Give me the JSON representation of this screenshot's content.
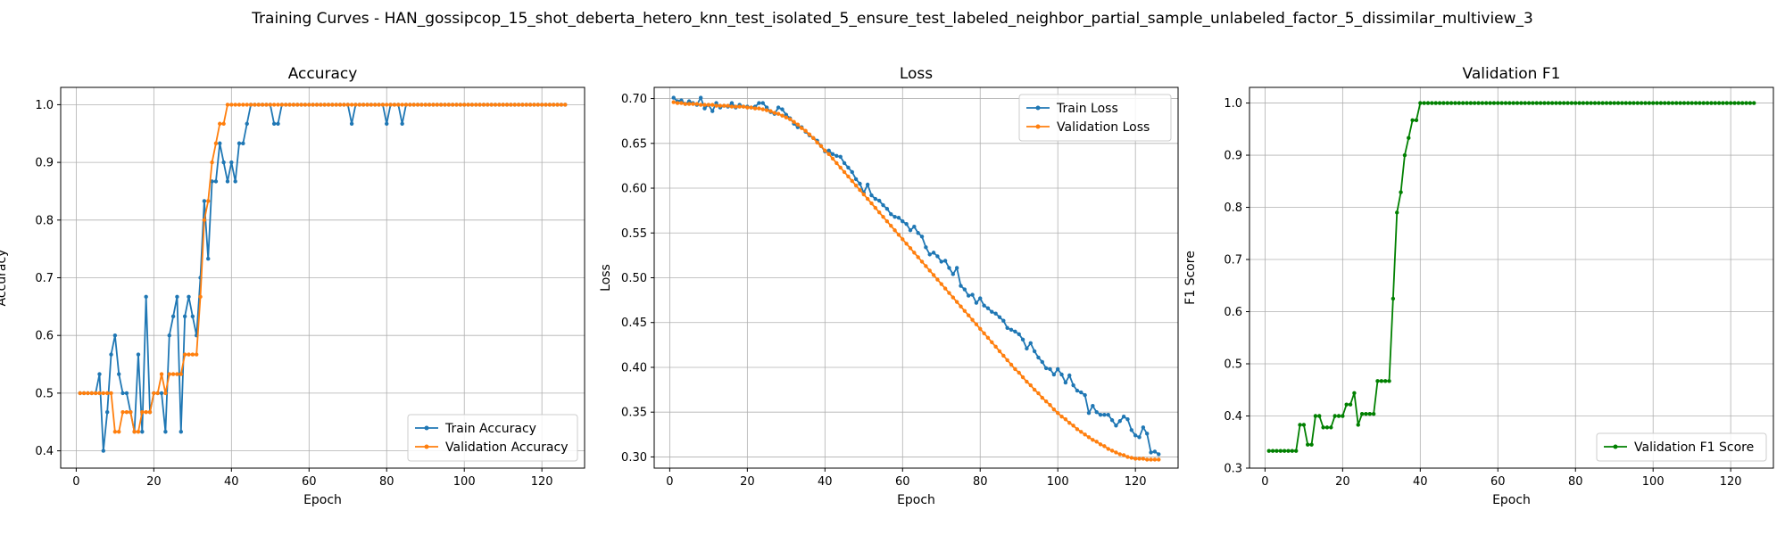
{
  "figure": {
    "suptitle": "Training Curves - HAN_gossipcop_15_shot_deberta_hetero_knn_test_isolated_5_ensure_test_labeled_neighbor_partial_sample_unlabeled_factor_5_dissimilar_multiview_3"
  },
  "chart_data": [
    {
      "type": "line",
      "title": "Accuracy",
      "xlabel": "Epoch",
      "ylabel": "Accuracy",
      "xlim": [
        -4,
        131
      ],
      "ylim": [
        0.37,
        1.03
      ],
      "xticks": [
        0,
        20,
        40,
        60,
        80,
        100,
        120
      ],
      "yticks": [
        0.4,
        0.5,
        0.6,
        0.7,
        0.8,
        0.9,
        1.0
      ],
      "grid": true,
      "legend_position": "lower-right",
      "x": [
        1,
        2,
        3,
        4,
        5,
        6,
        7,
        8,
        9,
        10,
        11,
        12,
        13,
        14,
        15,
        16,
        17,
        18,
        19,
        20,
        21,
        22,
        23,
        24,
        25,
        26,
        27,
        28,
        29,
        30,
        31,
        32,
        33,
        34,
        35,
        36,
        37,
        38,
        39,
        40,
        41,
        42,
        43,
        44,
        45,
        46,
        47,
        48,
        49,
        50,
        51,
        52,
        53,
        54,
        55,
        56,
        57,
        58,
        59,
        60,
        61,
        62,
        63,
        64,
        65,
        66,
        67,
        68,
        69,
        70,
        71,
        72,
        73,
        74,
        75,
        76,
        77,
        78,
        79,
        80,
        81,
        82,
        83,
        84,
        85,
        86,
        87,
        88,
        89,
        90,
        91,
        92,
        93,
        94,
        95,
        96,
        97,
        98,
        99,
        100,
        101,
        102,
        103,
        104,
        105,
        106,
        107,
        108,
        109,
        110,
        111,
        112,
        113,
        114,
        115,
        116,
        117,
        118,
        119,
        120,
        121,
        122,
        123,
        124,
        125,
        126
      ],
      "series": [
        {
          "name": "Train Accuracy",
          "color": "#1f77b4",
          "values": [
            0.5,
            0.5,
            0.5,
            0.5,
            0.5,
            0.533,
            0.4,
            0.467,
            0.567,
            0.6,
            0.533,
            0.5,
            0.5,
            0.467,
            0.433,
            0.567,
            0.433,
            0.667,
            0.467,
            0.5,
            0.5,
            0.5,
            0.433,
            0.6,
            0.633,
            0.667,
            0.433,
            0.633,
            0.667,
            0.633,
            0.6,
            0.7,
            0.833,
            0.733,
            0.867,
            0.867,
            0.933,
            0.9,
            0.867,
            0.9,
            0.867,
            0.933,
            0.933,
            0.967,
            1.0,
            1.0,
            1.0,
            1.0,
            1.0,
            1.0,
            0.967,
            0.967,
            1.0,
            1.0,
            1.0,
            1.0,
            1.0,
            1.0,
            1.0,
            1.0,
            1.0,
            1.0,
            1.0,
            1.0,
            1.0,
            1.0,
            1.0,
            1.0,
            1.0,
            1.0,
            0.967,
            1.0,
            1.0,
            1.0,
            1.0,
            1.0,
            1.0,
            1.0,
            1.0,
            0.967,
            1.0,
            1.0,
            1.0,
            0.967,
            1.0,
            1.0,
            1.0,
            1.0,
            1.0,
            1.0,
            1.0,
            1.0,
            1.0,
            1.0,
            1.0,
            1.0,
            1.0,
            1.0,
            1.0,
            1.0,
            1.0,
            1.0,
            1.0,
            1.0,
            1.0,
            1.0,
            1.0,
            1.0,
            1.0,
            1.0,
            1.0,
            1.0,
            1.0,
            1.0,
            1.0,
            1.0,
            1.0,
            1.0,
            1.0,
            1.0,
            1.0,
            1.0,
            1.0,
            1.0,
            1.0,
            1.0
          ]
        },
        {
          "name": "Validation Accuracy",
          "color": "#ff7f0e",
          "values": [
            0.5,
            0.5,
            0.5,
            0.5,
            0.5,
            0.5,
            0.5,
            0.5,
            0.5,
            0.433,
            0.433,
            0.467,
            0.467,
            0.467,
            0.433,
            0.433,
            0.467,
            0.467,
            0.467,
            0.5,
            0.5,
            0.533,
            0.5,
            0.533,
            0.533,
            0.533,
            0.533,
            0.567,
            0.567,
            0.567,
            0.567,
            0.667,
            0.8,
            0.833,
            0.9,
            0.933,
            0.967,
            0.967,
            1.0,
            1.0,
            1.0,
            1.0,
            1.0,
            1.0,
            1.0,
            1.0,
            1.0,
            1.0,
            1.0,
            1.0,
            1.0,
            1.0,
            1.0,
            1.0,
            1.0,
            1.0,
            1.0,
            1.0,
            1.0,
            1.0,
            1.0,
            1.0,
            1.0,
            1.0,
            1.0,
            1.0,
            1.0,
            1.0,
            1.0,
            1.0,
            1.0,
            1.0,
            1.0,
            1.0,
            1.0,
            1.0,
            1.0,
            1.0,
            1.0,
            1.0,
            1.0,
            1.0,
            1.0,
            1.0,
            1.0,
            1.0,
            1.0,
            1.0,
            1.0,
            1.0,
            1.0,
            1.0,
            1.0,
            1.0,
            1.0,
            1.0,
            1.0,
            1.0,
            1.0,
            1.0,
            1.0,
            1.0,
            1.0,
            1.0,
            1.0,
            1.0,
            1.0,
            1.0,
            1.0,
            1.0,
            1.0,
            1.0,
            1.0,
            1.0,
            1.0,
            1.0,
            1.0,
            1.0,
            1.0,
            1.0,
            1.0,
            1.0,
            1.0,
            1.0,
            1.0,
            1.0
          ]
        }
      ]
    },
    {
      "type": "line",
      "title": "Loss",
      "xlabel": "Epoch",
      "ylabel": "Loss",
      "xlim": [
        -4,
        131
      ],
      "ylim": [
        0.2875,
        0.7125
      ],
      "xticks": [
        0,
        20,
        40,
        60,
        80,
        100,
        120
      ],
      "yticks": [
        0.3,
        0.35,
        0.4,
        0.45,
        0.5,
        0.55,
        0.6,
        0.65,
        0.7
      ],
      "grid": true,
      "legend_position": "upper-right",
      "x": [
        1,
        2,
        3,
        4,
        5,
        6,
        7,
        8,
        9,
        10,
        11,
        12,
        13,
        14,
        15,
        16,
        17,
        18,
        19,
        20,
        21,
        22,
        23,
        24,
        25,
        26,
        27,
        28,
        29,
        30,
        31,
        32,
        33,
        34,
        35,
        36,
        37,
        38,
        39,
        40,
        41,
        42,
        43,
        44,
        45,
        46,
        47,
        48,
        49,
        50,
        51,
        52,
        53,
        54,
        55,
        56,
        57,
        58,
        59,
        60,
        61,
        62,
        63,
        64,
        65,
        66,
        67,
        68,
        69,
        70,
        71,
        72,
        73,
        74,
        75,
        76,
        77,
        78,
        79,
        80,
        81,
        82,
        83,
        84,
        85,
        86,
        87,
        88,
        89,
        90,
        91,
        92,
        93,
        94,
        95,
        96,
        97,
        98,
        99,
        100,
        101,
        102,
        103,
        104,
        105,
        106,
        107,
        108,
        109,
        110,
        111,
        112,
        113,
        114,
        115,
        116,
        117,
        118,
        119,
        120,
        121,
        122,
        123,
        124,
        125,
        126
      ],
      "series": [
        {
          "name": "Train Loss",
          "color": "#1f77b4",
          "values": [
            0.701,
            0.697,
            0.698,
            0.694,
            0.697,
            0.695,
            0.693,
            0.701,
            0.689,
            0.693,
            0.686,
            0.695,
            0.69,
            0.692,
            0.691,
            0.695,
            0.69,
            0.693,
            0.691,
            0.691,
            0.69,
            0.691,
            0.695,
            0.695,
            0.69,
            0.685,
            0.683,
            0.69,
            0.688,
            0.682,
            0.678,
            0.672,
            0.668,
            0.668,
            0.663,
            0.659,
            0.656,
            0.653,
            0.647,
            0.641,
            0.642,
            0.638,
            0.636,
            0.635,
            0.628,
            0.623,
            0.618,
            0.61,
            0.605,
            0.595,
            0.604,
            0.592,
            0.588,
            0.586,
            0.581,
            0.577,
            0.571,
            0.568,
            0.567,
            0.563,
            0.56,
            0.553,
            0.557,
            0.55,
            0.546,
            0.534,
            0.526,
            0.528,
            0.524,
            0.518,
            0.519,
            0.511,
            0.504,
            0.511,
            0.491,
            0.487,
            0.48,
            0.481,
            0.472,
            0.477,
            0.469,
            0.466,
            0.462,
            0.46,
            0.456,
            0.452,
            0.444,
            0.442,
            0.44,
            0.437,
            0.431,
            0.421,
            0.427,
            0.418,
            0.411,
            0.406,
            0.399,
            0.398,
            0.392,
            0.398,
            0.392,
            0.383,
            0.391,
            0.38,
            0.374,
            0.372,
            0.369,
            0.349,
            0.357,
            0.35,
            0.347,
            0.347,
            0.347,
            0.341,
            0.335,
            0.34,
            0.345,
            0.342,
            0.33,
            0.324,
            0.322,
            0.333,
            0.326,
            0.305,
            0.306,
            0.303
          ]
        },
        {
          "name": "Validation Loss",
          "color": "#ff7f0e",
          "values": [
            0.696,
            0.695,
            0.695,
            0.694,
            0.694,
            0.694,
            0.694,
            0.693,
            0.693,
            0.693,
            0.693,
            0.692,
            0.692,
            0.692,
            0.692,
            0.691,
            0.691,
            0.691,
            0.691,
            0.69,
            0.69,
            0.689,
            0.689,
            0.688,
            0.687,
            0.686,
            0.684,
            0.683,
            0.681,
            0.679,
            0.677,
            0.674,
            0.671,
            0.667,
            0.664,
            0.66,
            0.656,
            0.651,
            0.647,
            0.642,
            0.638,
            0.633,
            0.628,
            0.623,
            0.618,
            0.613,
            0.608,
            0.603,
            0.598,
            0.593,
            0.588,
            0.583,
            0.578,
            0.573,
            0.568,
            0.563,
            0.558,
            0.553,
            0.548,
            0.543,
            0.538,
            0.533,
            0.528,
            0.523,
            0.518,
            0.513,
            0.508,
            0.503,
            0.498,
            0.493,
            0.488,
            0.483,
            0.478,
            0.473,
            0.468,
            0.463,
            0.458,
            0.453,
            0.448,
            0.443,
            0.438,
            0.433,
            0.428,
            0.423,
            0.418,
            0.413,
            0.408,
            0.403,
            0.398,
            0.394,
            0.389,
            0.384,
            0.38,
            0.375,
            0.371,
            0.366,
            0.362,
            0.358,
            0.353,
            0.349,
            0.345,
            0.342,
            0.338,
            0.335,
            0.331,
            0.328,
            0.325,
            0.322,
            0.319,
            0.317,
            0.314,
            0.312,
            0.309,
            0.307,
            0.305,
            0.303,
            0.302,
            0.3,
            0.299,
            0.298,
            0.298,
            0.298,
            0.297,
            0.297,
            0.297,
            0.297
          ]
        }
      ]
    },
    {
      "type": "line",
      "title": "Validation F1",
      "xlabel": "Epoch",
      "ylabel": "F1 Score",
      "xlim": [
        -4,
        131
      ],
      "ylim": [
        0.3,
        1.03
      ],
      "xticks": [
        0,
        20,
        40,
        60,
        80,
        100,
        120
      ],
      "yticks": [
        0.3,
        0.4,
        0.5,
        0.6,
        0.7,
        0.8,
        0.9,
        1.0
      ],
      "grid": true,
      "legend_position": "lower-right",
      "x": [
        1,
        2,
        3,
        4,
        5,
        6,
        7,
        8,
        9,
        10,
        11,
        12,
        13,
        14,
        15,
        16,
        17,
        18,
        19,
        20,
        21,
        22,
        23,
        24,
        25,
        26,
        27,
        28,
        29,
        30,
        31,
        32,
        33,
        34,
        35,
        36,
        37,
        38,
        39,
        40,
        41,
        42,
        43,
        44,
        45,
        46,
        47,
        48,
        49,
        50,
        51,
        52,
        53,
        54,
        55,
        56,
        57,
        58,
        59,
        60,
        61,
        62,
        63,
        64,
        65,
        66,
        67,
        68,
        69,
        70,
        71,
        72,
        73,
        74,
        75,
        76,
        77,
        78,
        79,
        80,
        81,
        82,
        83,
        84,
        85,
        86,
        87,
        88,
        89,
        90,
        91,
        92,
        93,
        94,
        95,
        96,
        97,
        98,
        99,
        100,
        101,
        102,
        103,
        104,
        105,
        106,
        107,
        108,
        109,
        110,
        111,
        112,
        113,
        114,
        115,
        116,
        117,
        118,
        119,
        120,
        121,
        122,
        123,
        124,
        125,
        126
      ],
      "series": [
        {
          "name": "Validation F1 Score",
          "color": "#008000",
          "values": [
            0.333,
            0.333,
            0.333,
            0.333,
            0.333,
            0.333,
            0.333,
            0.333,
            0.383,
            0.383,
            0.345,
            0.345,
            0.4,
            0.4,
            0.378,
            0.378,
            0.378,
            0.4,
            0.4,
            0.4,
            0.422,
            0.422,
            0.444,
            0.383,
            0.404,
            0.404,
            0.404,
            0.404,
            0.467,
            0.467,
            0.467,
            0.467,
            0.625,
            0.79,
            0.829,
            0.9,
            0.933,
            0.967,
            0.967,
            1.0,
            1.0,
            1.0,
            1.0,
            1.0,
            1.0,
            1.0,
            1.0,
            1.0,
            1.0,
            1.0,
            1.0,
            1.0,
            1.0,
            1.0,
            1.0,
            1.0,
            1.0,
            1.0,
            1.0,
            1.0,
            1.0,
            1.0,
            1.0,
            1.0,
            1.0,
            1.0,
            1.0,
            1.0,
            1.0,
            1.0,
            1.0,
            1.0,
            1.0,
            1.0,
            1.0,
            1.0,
            1.0,
            1.0,
            1.0,
            1.0,
            1.0,
            1.0,
            1.0,
            1.0,
            1.0,
            1.0,
            1.0,
            1.0,
            1.0,
            1.0,
            1.0,
            1.0,
            1.0,
            1.0,
            1.0,
            1.0,
            1.0,
            1.0,
            1.0,
            1.0,
            1.0,
            1.0,
            1.0,
            1.0,
            1.0,
            1.0,
            1.0,
            1.0,
            1.0,
            1.0,
            1.0,
            1.0,
            1.0,
            1.0,
            1.0,
            1.0,
            1.0,
            1.0,
            1.0,
            1.0,
            1.0,
            1.0,
            1.0,
            1.0,
            1.0,
            1.0
          ]
        }
      ]
    }
  ]
}
